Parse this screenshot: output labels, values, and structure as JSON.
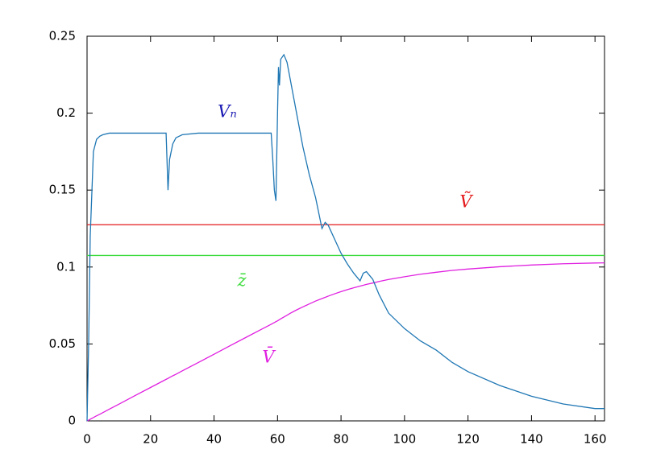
{
  "chart_data": {
    "type": "line",
    "x": [
      0,
      0.5,
      1,
      2,
      3,
      4,
      5,
      7,
      10,
      15,
      20,
      24.9,
      25.5,
      26,
      27,
      28,
      30,
      35,
      40,
      45,
      50,
      55,
      58,
      58.5,
      59,
      59.5,
      60,
      60.3,
      60.6,
      61,
      62,
      63,
      64,
      66,
      68,
      70,
      72,
      74,
      75,
      76,
      78,
      80,
      82,
      84,
      86,
      87,
      88,
      90,
      92,
      95,
      100,
      105,
      110,
      115,
      120,
      130,
      140,
      150,
      160,
      163
    ],
    "series": [
      {
        "name": "Vₙ",
        "color": "#1f77b4",
        "values": [
          0,
          0.05,
          0.12,
          0.175,
          0.183,
          0.185,
          0.186,
          0.187,
          0.187,
          0.187,
          0.187,
          0.187,
          0.15,
          0.17,
          0.18,
          0.184,
          0.186,
          0.187,
          0.187,
          0.187,
          0.187,
          0.187,
          0.187,
          0.17,
          0.15,
          0.143,
          0.2,
          0.23,
          0.218,
          0.235,
          0.238,
          0.233,
          0.222,
          0.2,
          0.178,
          0.16,
          0.145,
          0.125,
          0.129,
          0.127,
          0.118,
          0.109,
          0.102,
          0.096,
          0.091,
          0.096,
          0.097,
          0.092,
          0.082,
          0.07,
          0.06,
          0.052,
          0.046,
          0.038,
          0.032,
          0.023,
          0.016,
          0.011,
          0.008,
          0.008
        ]
      },
      {
        "name": "Ṽ",
        "color": "#e41a1c",
        "values": [
          0.1275,
          0.1275,
          0.1275,
          0.1275,
          0.1275,
          0.1275,
          0.1275,
          0.1275,
          0.1275,
          0.1275,
          0.1275,
          0.1275,
          0.1275,
          0.1275,
          0.1275,
          0.1275,
          0.1275,
          0.1275,
          0.1275,
          0.1275,
          0.1275,
          0.1275,
          0.1275,
          0.1275,
          0.1275,
          0.1275,
          0.1275,
          0.1275,
          0.1275,
          0.1275,
          0.1275,
          0.1275,
          0.1275,
          0.1275,
          0.1275,
          0.1275,
          0.1275,
          0.1275,
          0.1275,
          0.1275,
          0.1275,
          0.1275,
          0.1275,
          0.1275,
          0.1275,
          0.1275,
          0.1275,
          0.1275,
          0.1275,
          0.1275,
          0.1275,
          0.1275,
          0.1275,
          0.1275,
          0.1275,
          0.1275,
          0.1275,
          0.1275,
          0.1275,
          0.1275
        ]
      },
      {
        "name": "z̄",
        "color": "#3ddc3d",
        "values": [
          0.1075,
          0.1075,
          0.1075,
          0.1075,
          0.1075,
          0.1075,
          0.1075,
          0.1075,
          0.1075,
          0.1075,
          0.1075,
          0.1075,
          0.1075,
          0.1075,
          0.1075,
          0.1075,
          0.1075,
          0.1075,
          0.1075,
          0.1075,
          0.1075,
          0.1075,
          0.1075,
          0.1075,
          0.1075,
          0.1075,
          0.1075,
          0.1075,
          0.1075,
          0.1075,
          0.1075,
          0.1075,
          0.1075,
          0.1075,
          0.1075,
          0.1075,
          0.1075,
          0.1075,
          0.1075,
          0.1075,
          0.1075,
          0.1075,
          0.1075,
          0.1075,
          0.1075,
          0.1075,
          0.1075,
          0.1075,
          0.1075,
          0.1075,
          0.1075,
          0.1075,
          0.1075,
          0.1075,
          0.1075,
          0.1075,
          0.1075,
          0.1075,
          0.1075,
          0.1075
        ]
      },
      {
        "name": "V̄",
        "color": "#e020e0",
        "values": [
          0,
          0.0005,
          0.0011,
          0.0022,
          0.0033,
          0.0043,
          0.0054,
          0.0076,
          0.0108,
          0.0163,
          0.0217,
          0.027,
          0.0276,
          0.0282,
          0.0293,
          0.0303,
          0.0325,
          0.0379,
          0.0433,
          0.0488,
          0.0542,
          0.0596,
          0.0628,
          0.0634,
          0.0639,
          0.0645,
          0.065,
          0.0654,
          0.0658,
          0.0663,
          0.0675,
          0.0687,
          0.0699,
          0.0721,
          0.0741,
          0.076,
          0.0779,
          0.0795,
          0.0803,
          0.0811,
          0.0826,
          0.084,
          0.0853,
          0.0865,
          0.0876,
          0.0881,
          0.0887,
          0.0896,
          0.0906,
          0.0919,
          0.0937,
          0.0953,
          0.0966,
          0.0978,
          0.0987,
          0.1002,
          0.1013,
          0.1021,
          0.1026,
          0.1027
        ]
      }
    ],
    "annotations": [
      {
        "text": "Vₙ",
        "color": "#1a1ab4"
      },
      {
        "text": "Ṽ",
        "color": "#e41a1c"
      },
      {
        "text": "z̄",
        "color": "#3ddc3d"
      },
      {
        "text": "V̄",
        "color": "#e020e0"
      }
    ],
    "xlim": [
      0,
      163
    ],
    "xticks": [
      0,
      20,
      40,
      60,
      80,
      100,
      120,
      140,
      160
    ],
    "ylim": [
      0,
      0.25
    ],
    "yticks": [
      0,
      0.05,
      0.1,
      0.15,
      0.2,
      0.25
    ]
  }
}
